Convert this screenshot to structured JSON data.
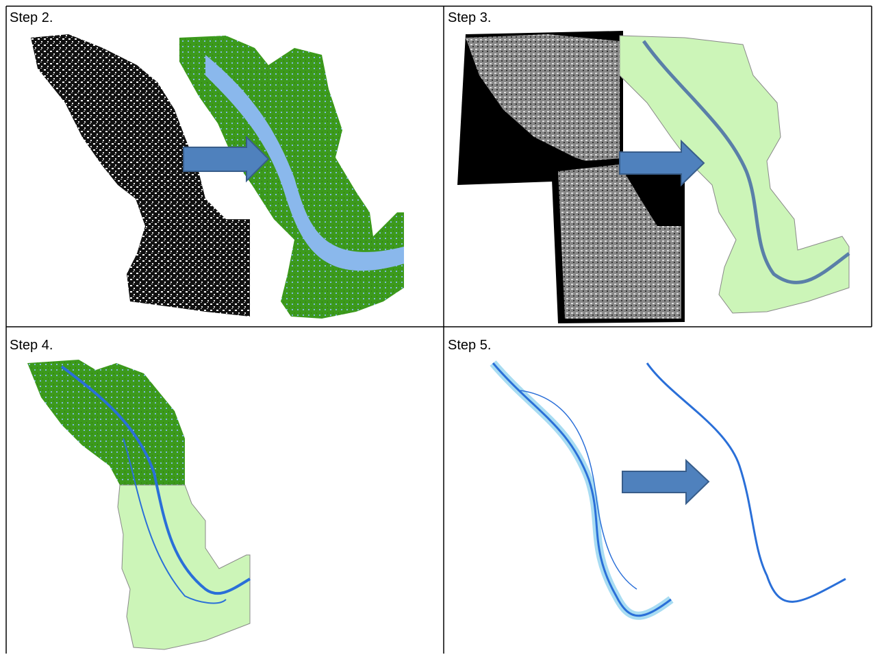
{
  "cells": [
    {
      "label": "Step 2."
    },
    {
      "label": "Step 3."
    },
    {
      "label": "Step 4."
    },
    {
      "label": "Step 5."
    }
  ]
}
